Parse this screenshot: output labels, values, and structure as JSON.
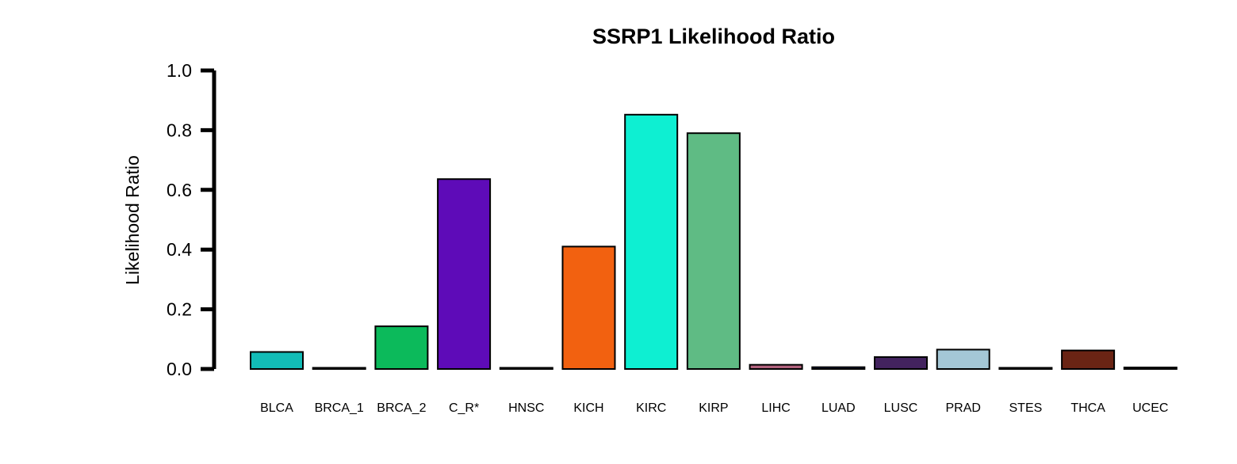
{
  "chart_data": {
    "type": "bar",
    "title": "SSRP1 Likelihood Ratio",
    "xlabel": "",
    "ylabel": "Likelihood Ratio",
    "ylim": [
      0,
      1.0
    ],
    "yticks": [
      "0.0",
      "0.2",
      "0.4",
      "0.6",
      "0.8",
      "1.0"
    ],
    "grid": false,
    "categories": [
      "BLCA",
      "BRCA_1",
      "BRCA_2",
      "C_R*",
      "HNSC",
      "KICH",
      "KIRC",
      "KIRP",
      "LIHC",
      "LUAD",
      "LUSC",
      "PRAD",
      "STES",
      "THCA",
      "UCEC"
    ],
    "values": [
      0.057,
      0.004,
      0.143,
      0.636,
      0.001,
      0.41,
      0.852,
      0.79,
      0.014,
      0.006,
      0.04,
      0.065,
      0.001,
      0.062,
      0.005
    ],
    "colors": [
      "#12BCB7",
      "#2B5FA5",
      "#0CBA5B",
      "#5E0BB8",
      "#F0E442",
      "#F26110",
      "#0EEFD2",
      "#5FBB84",
      "#B2637E",
      "#1B4A8A",
      "#43235F",
      "#A4C7D6",
      "#3A8A3A",
      "#6A2414",
      "#2E4A8A"
    ]
  }
}
